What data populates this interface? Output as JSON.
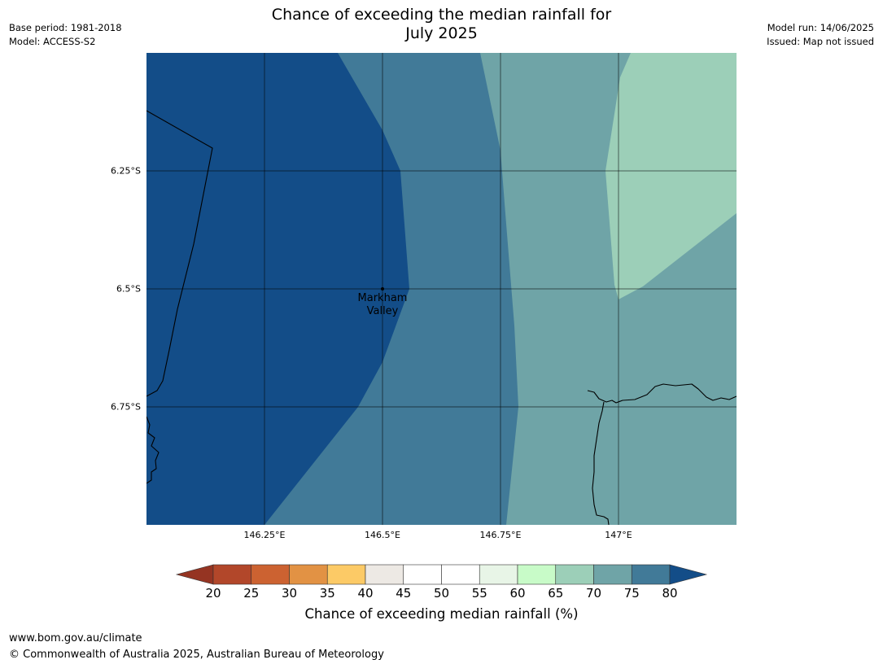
{
  "title_lines": [
    "Chance of exceeding the median rainfall for",
    "July 2025"
  ],
  "meta_left": [
    "Base period: 1981-2018",
    "Model: ACCESS-S2"
  ],
  "meta_right": [
    "Model run: 14/06/2025",
    "Issued: Map not issued"
  ],
  "map": {
    "lat_range": [
      -6.0,
      -7.0
    ],
    "lon_range": [
      146.0,
      147.25
    ],
    "lat_ticks": [
      {
        "value": -6.25,
        "label": "6.25°S"
      },
      {
        "value": -6.5,
        "label": "6.5°S"
      },
      {
        "value": -6.75,
        "label": "6.75°S"
      }
    ],
    "lon_ticks": [
      {
        "value": 146.25,
        "label": "146.25°E"
      },
      {
        "value": 146.5,
        "label": "146.5°E"
      },
      {
        "value": 146.75,
        "label": "146.75°E"
      },
      {
        "value": 147.0,
        "label": "147°E"
      }
    ],
    "place": {
      "name_lines": [
        "Markham",
        "Valley"
      ],
      "lat": -6.5,
      "lon": 146.5
    },
    "zone_colors": {
      "above_80": "#134d88",
      "75_80": "#417a98",
      "70_75": "#6fa4a7",
      "65_70": "#9ccfb8"
    }
  },
  "colorbar": {
    "ticks": [
      "20",
      "25",
      "30",
      "35",
      "40",
      "45",
      "50",
      "55",
      "60",
      "65",
      "70",
      "75",
      "80"
    ],
    "colors": [
      "#b2472a",
      "#cc6231",
      "#e29244",
      "#fcca66",
      "#ede9e4",
      "#ffffff",
      "#ffffff",
      "#e8f5e7",
      "#c8fbc8",
      "#9ccfb8",
      "#6fa4a7",
      "#417a98"
    ],
    "under_color": "#953422",
    "over_color": "#134d88",
    "label": "Chance of exceeding median rainfall (%)"
  },
  "footer": [
    "www.bom.gov.au/climate",
    "© Commonwealth of Australia 2025, Australian Bureau of Meteorology"
  ]
}
